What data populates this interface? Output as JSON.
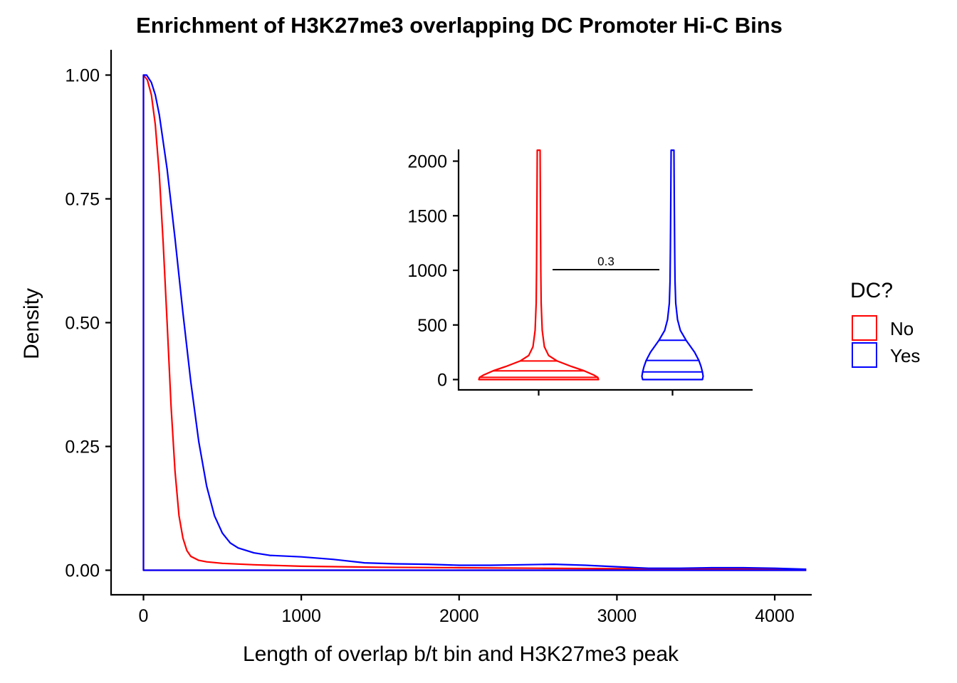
{
  "chart_data": {
    "type": "density",
    "title": "Enrichment of H3K27me3 overlapping DC Promoter Hi-C Bins",
    "xlabel": "Length of overlap b/t bin and H3K27me3 peak",
    "ylabel": "Density",
    "xlim": [
      -200,
      4200
    ],
    "ylim": [
      -0.05,
      1.05
    ],
    "x_ticks": [
      "0",
      "1000",
      "2000",
      "3000",
      "4000"
    ],
    "y_ticks": [
      "0.00",
      "0.25",
      "0.50",
      "0.75",
      "1.00"
    ],
    "grid": false,
    "legend": {
      "title": "DC?",
      "position": "right",
      "entries": [
        "No",
        "Yes"
      ]
    },
    "series": [
      {
        "name": "No",
        "color": "#ff0000",
        "points": [
          [
            0,
            1.0
          ],
          [
            25,
            0.99
          ],
          [
            50,
            0.96
          ],
          [
            75,
            0.9
          ],
          [
            100,
            0.8
          ],
          [
            125,
            0.66
          ],
          [
            150,
            0.5
          ],
          [
            175,
            0.33
          ],
          [
            200,
            0.2
          ],
          [
            225,
            0.11
          ],
          [
            250,
            0.065
          ],
          [
            275,
            0.04
          ],
          [
            300,
            0.028
          ],
          [
            350,
            0.02
          ],
          [
            400,
            0.017
          ],
          [
            500,
            0.014
          ],
          [
            700,
            0.011
          ],
          [
            1000,
            0.008
          ],
          [
            1500,
            0.006
          ],
          [
            2000,
            0.005
          ],
          [
            2500,
            0.004
          ],
          [
            3000,
            0.003
          ],
          [
            3500,
            0.002
          ],
          [
            4000,
            0.002
          ],
          [
            4200,
            0.001
          ]
        ]
      },
      {
        "name": "Yes",
        "color": "#0000ff",
        "points": [
          [
            0,
            1.0
          ],
          [
            20,
            1.0
          ],
          [
            50,
            0.985
          ],
          [
            75,
            0.96
          ],
          [
            100,
            0.92
          ],
          [
            150,
            0.81
          ],
          [
            200,
            0.67
          ],
          [
            250,
            0.52
          ],
          [
            300,
            0.38
          ],
          [
            350,
            0.26
          ],
          [
            400,
            0.17
          ],
          [
            450,
            0.11
          ],
          [
            500,
            0.075
          ],
          [
            550,
            0.055
          ],
          [
            600,
            0.045
          ],
          [
            700,
            0.035
          ],
          [
            800,
            0.03
          ],
          [
            1000,
            0.027
          ],
          [
            1200,
            0.022
          ],
          [
            1400,
            0.015
          ],
          [
            1600,
            0.013
          ],
          [
            1800,
            0.012
          ],
          [
            2000,
            0.01
          ],
          [
            2200,
            0.01
          ],
          [
            2400,
            0.011
          ],
          [
            2600,
            0.012
          ],
          [
            2800,
            0.01
          ],
          [
            3000,
            0.007
          ],
          [
            3200,
            0.004
          ],
          [
            3400,
            0.004
          ],
          [
            3600,
            0.005
          ],
          [
            3800,
            0.005
          ],
          [
            4000,
            0.004
          ],
          [
            4200,
            0.002
          ]
        ]
      }
    ],
    "inset": {
      "type": "violin",
      "ylim": [
        -100,
        2100
      ],
      "y_ticks": [
        "0",
        "500",
        "1000",
        "1500",
        "2000"
      ],
      "groups": [
        "No",
        "Yes"
      ],
      "quantiles": {
        "No": [
          20,
          80,
          170
        ],
        "Yes": [
          70,
          175,
          360
        ]
      },
      "max": {
        "No": 2100,
        "Yes": 2100
      },
      "comparison": {
        "label": "0.3",
        "y": 1000
      }
    }
  }
}
